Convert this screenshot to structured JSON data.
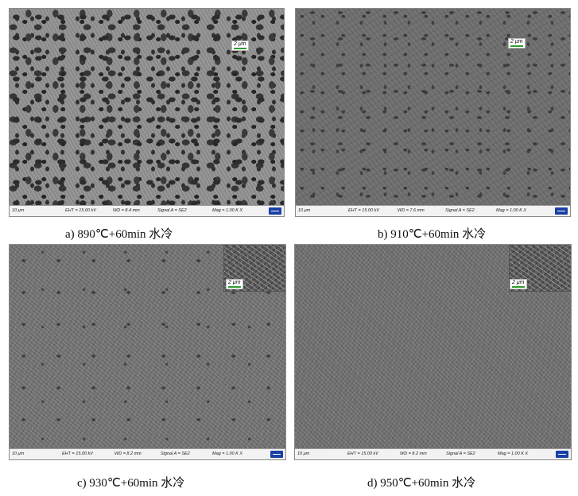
{
  "panels": [
    {
      "id": "a",
      "caption": "a) 890℃+60min 水冷",
      "inset_scale": "2 μm",
      "info": {
        "scale": "10 μm",
        "eht": "EHT = 15.00 kV",
        "wd": "WD = 8.4 mm",
        "signal": "Signal A = SE2",
        "mag": "Mag =  1.00 K X"
      }
    },
    {
      "id": "b",
      "caption": "b) 910℃+60min 水冷",
      "inset_scale": "2 μm",
      "info": {
        "scale": "10 μm",
        "eht": "EHT = 15.00 kV",
        "wd": "WD = 7.6 mm",
        "signal": "Signal A = SE2",
        "mag": "Mag =  1.00 K X"
      }
    },
    {
      "id": "c",
      "caption": "c) 930℃+60min 水冷",
      "inset_scale": "2 μm",
      "info": {
        "scale": "10 μm",
        "eht": "EHT = 15.00 kV",
        "wd": "WD = 8.2 mm",
        "signal": "Signal A = SE2",
        "mag": "Mag =  1.00 K X"
      }
    },
    {
      "id": "d",
      "caption": "d) 950℃+60min 水冷",
      "inset_scale": "2 μm",
      "info": {
        "scale": "10 μm",
        "eht": "EHT = 15.00 kV",
        "wd": "WD = 8.2 mm",
        "signal": "Signal A = SE2",
        "mag": "Mag =  1.00 K X"
      }
    }
  ]
}
